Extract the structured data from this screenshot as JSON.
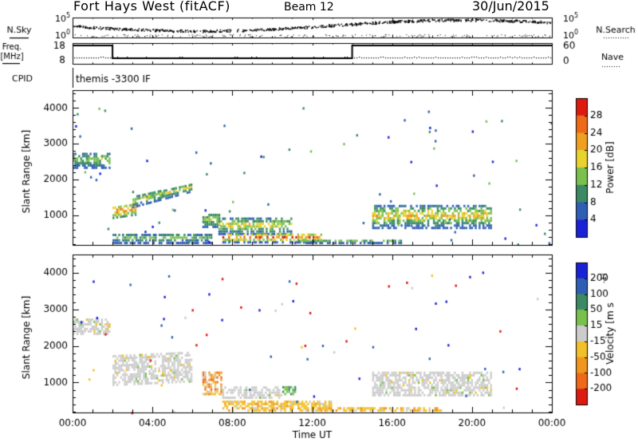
{
  "header": {
    "station": "Fort Hays West (fitACF)",
    "beam": "Beam 12",
    "date": "30/Jun/2015"
  },
  "panels": {
    "nsky": {
      "label": "N.Sky",
      "ticks": [
        "10^5",
        "10^0"
      ]
    },
    "nsearch": {
      "label": "N.Search",
      "ticks": [
        "10^5",
        "10^0"
      ]
    },
    "freq": {
      "label": "Freq.",
      "unit": "[MHz]",
      "ticks": [
        "18",
        "8"
      ]
    },
    "nave": {
      "label": "Nave",
      "ticks": [
        "60",
        "0"
      ]
    },
    "cpid": {
      "label": "CPID",
      "value": "themis -3300 IF"
    }
  },
  "chart_data": [
    {
      "type": "heatmap",
      "name": "power",
      "ylabel": "Slant Range [km]",
      "xlabel": "",
      "xlim": [
        0,
        24
      ],
      "ylim": [
        180,
        4500
      ],
      "yticks": [
        1000,
        2000,
        3000,
        4000
      ],
      "colorbar": {
        "title": "Power [dB]",
        "ticks": [
          "4",
          "8",
          "12",
          "16",
          "20",
          "24",
          "28"
        ],
        "range": [
          0,
          30
        ]
      },
      "colors": [
        "#1a22d8",
        "#2f5fb4",
        "#3b8a64",
        "#79c04f",
        "#e8d22e",
        "#f0a020",
        "#ee6a18",
        "#dd1a10"
      ],
      "regions": [
        {
          "t": [
            0.0,
            1.9
          ],
          "r": [
            2300,
            2750
          ],
          "vmin": 5,
          "vmax": 16
        },
        {
          "t": [
            2.0,
            3.2
          ],
          "r": [
            900,
            1400
          ],
          "vmin": 10,
          "vmax": 26
        },
        {
          "t": [
            3.0,
            6.0
          ],
          "r": [
            1200,
            1900
          ],
          "vmin": 4,
          "vmax": 18
        },
        {
          "t": [
            6.5,
            7.4
          ],
          "r": [
            650,
            1050
          ],
          "vmin": 6,
          "vmax": 16
        },
        {
          "t": [
            7.3,
            11.0
          ],
          "r": [
            450,
            950
          ],
          "vmin": 4,
          "vmax": 20
        },
        {
          "t": [
            7.5,
            12.5
          ],
          "r": [
            220,
            500
          ],
          "vmin": 6,
          "vmax": 28
        },
        {
          "t": [
            11.0,
            16.5
          ],
          "r": [
            200,
            320
          ],
          "vmin": 4,
          "vmax": 14
        },
        {
          "t": [
            15.0,
            21.0
          ],
          "r": [
            620,
            1300
          ],
          "vmin": 4,
          "vmax": 22
        },
        {
          "t": [
            2.0,
            7.0
          ],
          "r": [
            200,
            500
          ],
          "vmin": 4,
          "vmax": 14
        }
      ]
    },
    {
      "type": "heatmap",
      "name": "velocity",
      "ylabel": "Slant Range [km]",
      "xlabel": "Time UT",
      "xlim": [
        0,
        24
      ],
      "ylim": [
        180,
        4500
      ],
      "yticks": [
        1000,
        2000,
        3000,
        4000
      ],
      "xticks": [
        "00:00",
        "04:00",
        "08:00",
        "12:00",
        "16:00",
        "20:00",
        "00:00"
      ],
      "colorbar": {
        "title": "Velocity [m s^-1]",
        "ticks": [
          "200",
          "100",
          "50",
          "15",
          "-15",
          "-50",
          "-100",
          "-200"
        ]
      },
      "colors": [
        "#1a22d8",
        "#2f5fb4",
        "#3b8a64",
        "#79c04f",
        "#cccccc",
        "#f2c02a",
        "#f0961e",
        "#ee6a18",
        "#dd1a10"
      ],
      "regions": [
        {
          "t": [
            0.0,
            1.9
          ],
          "r": [
            2300,
            2750
          ],
          "class": "ground"
        },
        {
          "t": [
            2.0,
            6.0
          ],
          "r": [
            900,
            1900
          ],
          "class": "ground"
        },
        {
          "t": [
            6.5,
            7.5
          ],
          "r": [
            650,
            1300
          ],
          "class": "neg"
        },
        {
          "t": [
            7.4,
            10.5
          ],
          "r": [
            550,
            900
          ],
          "class": "ground"
        },
        {
          "t": [
            7.5,
            13.0
          ],
          "r": [
            200,
            500
          ],
          "class": "negweak"
        },
        {
          "t": [
            10.5,
            11.2
          ],
          "r": [
            650,
            900
          ],
          "class": "pos"
        },
        {
          "t": [
            15.0,
            21.0
          ],
          "r": [
            620,
            1300
          ],
          "class": "ground"
        },
        {
          "t": [
            12.5,
            18.5
          ],
          "r": [
            200,
            320
          ],
          "class": "negweak"
        }
      ]
    }
  ]
}
